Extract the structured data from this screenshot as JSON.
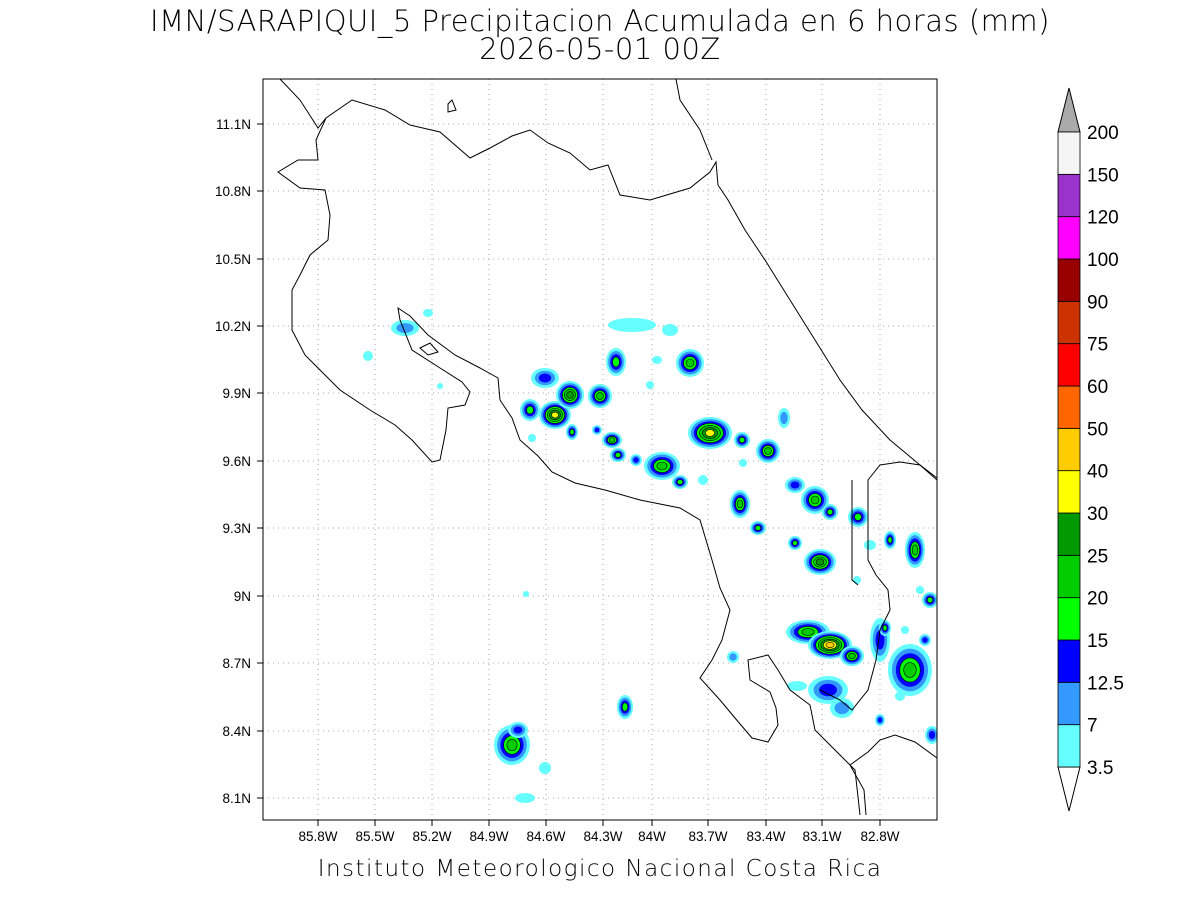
{
  "title_line1": "IMN/SARAPIQUI_5 Precipitacion Acumulada en 6 horas (mm)",
  "title_line2": "2026-05-01 00Z",
  "footer": "Instituto Meteorologico Nacional Costa Rica",
  "map": {
    "lon_range": [
      -86.0,
      -82.5
    ],
    "lat_range": [
      8.0,
      11.3
    ],
    "lon_ticks": [
      "85.8W",
      "85.5W",
      "85.2W",
      "84.9W",
      "84.6W",
      "84.3W",
      "84W",
      "83.7W",
      "83.4W",
      "83.1W",
      "82.8W"
    ],
    "lat_ticks": [
      "11.1N",
      "10.8N",
      "10.5N",
      "10.2N",
      "9.9N",
      "9.6N",
      "9.3N",
      "9N",
      "8.7N",
      "8.4N",
      "8.1N"
    ]
  },
  "legend": {
    "levels": [
      "3.5",
      "7",
      "12.5",
      "15",
      "20",
      "25",
      "30",
      "40",
      "50",
      "60",
      "75",
      "90",
      "100",
      "120",
      "150",
      "200"
    ],
    "colors": [
      "#66ffff",
      "#3399ff",
      "#0000ff",
      "#00ff00",
      "#00cc00",
      "#009900",
      "#ffff00",
      "#ffcc00",
      "#ff6600",
      "#ff0000",
      "#cc3300",
      "#990000",
      "#ff00ff",
      "#9933cc",
      "#f5f5f5"
    ],
    "over_color": "#aaaaaa",
    "under_color": "#ffffff"
  }
}
